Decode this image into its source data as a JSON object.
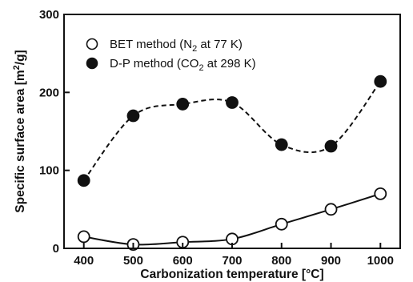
{
  "chart_data": {
    "type": "line",
    "xlabel": "Carbonization temperature [°C]",
    "ylabel_main": "Specific surface area [m",
    "ylabel_sup": "2",
    "ylabel_end": "/g]",
    "xlim": [
      360,
      1040
    ],
    "ylim": [
      0,
      300
    ],
    "x_ticks": [
      400,
      500,
      600,
      700,
      800,
      900,
      1000
    ],
    "y_ticks": [
      0,
      100,
      200,
      300
    ],
    "grid": false,
    "legend_position": "top-left",
    "series": [
      {
        "name_main": "BET method (N",
        "name_sub": "2",
        "name_end": " at 77 K)",
        "marker": "open-circle",
        "line_style": "solid",
        "x": [
          400,
          500,
          600,
          700,
          800,
          900,
          1000
        ],
        "y": [
          15,
          5,
          8,
          12,
          31,
          50,
          70
        ]
      },
      {
        "name_main": "D-P method (CO",
        "name_sub": "2",
        "name_end": " at 298 K)",
        "marker": "filled-circle",
        "line_style": "dashed",
        "x": [
          400,
          500,
          600,
          700,
          800,
          900,
          1000
        ],
        "y": [
          87,
          170,
          185,
          187,
          133,
          131,
          214
        ]
      }
    ]
  }
}
